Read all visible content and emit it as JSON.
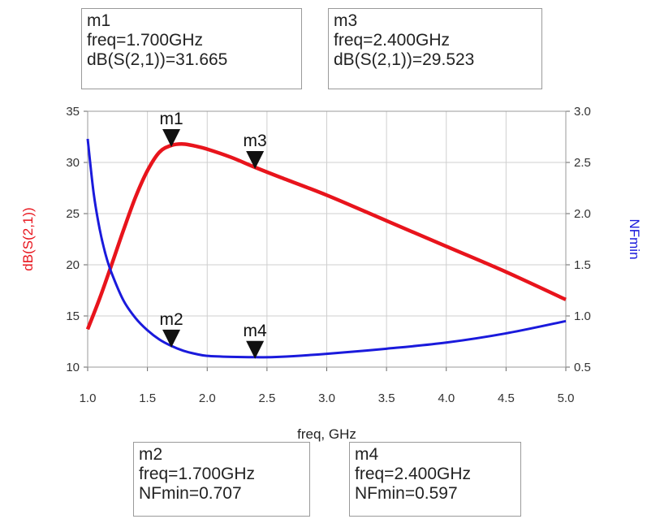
{
  "markers": [
    {
      "id": "m1",
      "label": "m1",
      "line1": "freq=1.700GHz",
      "line2": "dB(S(2,1))=31.665"
    },
    {
      "id": "m3",
      "label": "m3",
      "line1": "freq=2.400GHz",
      "line2": "dB(S(2,1))=29.523"
    },
    {
      "id": "m2",
      "label": "m2",
      "line1": "freq=1.700GHz",
      "line2": "NFmin=0.707"
    },
    {
      "id": "m4",
      "label": "m4",
      "line1": "freq=2.400GHz",
      "line2": "NFmin=0.597"
    }
  ],
  "chart_data": {
    "type": "line",
    "xlabel": "freq, GHz",
    "ylabel_left": "dB(S(2,1))",
    "ylabel_right": "NFmin",
    "xlim": [
      1.0,
      5.0
    ],
    "ylim_left": [
      10,
      35
    ],
    "ylim_right": [
      0.5,
      3.0
    ],
    "x_ticks": [
      "1.0",
      "1.5",
      "2.0",
      "2.5",
      "3.0",
      "3.5",
      "4.0",
      "4.5",
      "5.0"
    ],
    "y_left_ticks": [
      "10",
      "15",
      "20",
      "25",
      "30",
      "35"
    ],
    "y_right_ticks": [
      "0.5",
      "1.0",
      "1.5",
      "2.0",
      "2.5",
      "3.0"
    ],
    "grid": true,
    "colors": {
      "s21": "#e8141c",
      "nfmin": "#1a1adc"
    },
    "series": [
      {
        "name": "dB(S(2,1))",
        "axis": "left",
        "x": [
          1.0,
          1.1,
          1.2,
          1.3,
          1.4,
          1.5,
          1.6,
          1.7,
          1.8,
          1.9,
          2.0,
          2.2,
          2.4,
          2.6,
          3.0,
          3.5,
          4.0,
          4.5,
          5.0
        ],
        "y": [
          13.7,
          16.7,
          20.0,
          23.4,
          26.6,
          29.2,
          31.0,
          31.665,
          31.8,
          31.6,
          31.3,
          30.5,
          29.523,
          28.6,
          26.8,
          24.3,
          21.8,
          19.3,
          16.6
        ]
      },
      {
        "name": "NFmin",
        "axis": "right",
        "x": [
          1.0,
          1.05,
          1.1,
          1.15,
          1.2,
          1.3,
          1.4,
          1.5,
          1.6,
          1.7,
          1.8,
          1.9,
          2.0,
          2.2,
          2.4,
          2.6,
          3.0,
          3.5,
          4.0,
          4.5,
          5.0
        ],
        "y": [
          2.73,
          2.2,
          1.85,
          1.6,
          1.42,
          1.15,
          0.98,
          0.86,
          0.77,
          0.707,
          0.66,
          0.63,
          0.61,
          0.6,
          0.597,
          0.6,
          0.63,
          0.68,
          0.74,
          0.83,
          0.95
        ]
      }
    ],
    "marker_points": [
      {
        "label": "m1",
        "series": "dB(S(2,1))",
        "x": 1.7,
        "y": 31.665
      },
      {
        "label": "m3",
        "series": "dB(S(2,1))",
        "x": 2.4,
        "y": 29.523
      },
      {
        "label": "m2",
        "series": "NFmin",
        "x": 1.7,
        "y": 0.707
      },
      {
        "label": "m4",
        "series": "NFmin",
        "x": 2.4,
        "y": 0.597
      }
    ]
  }
}
